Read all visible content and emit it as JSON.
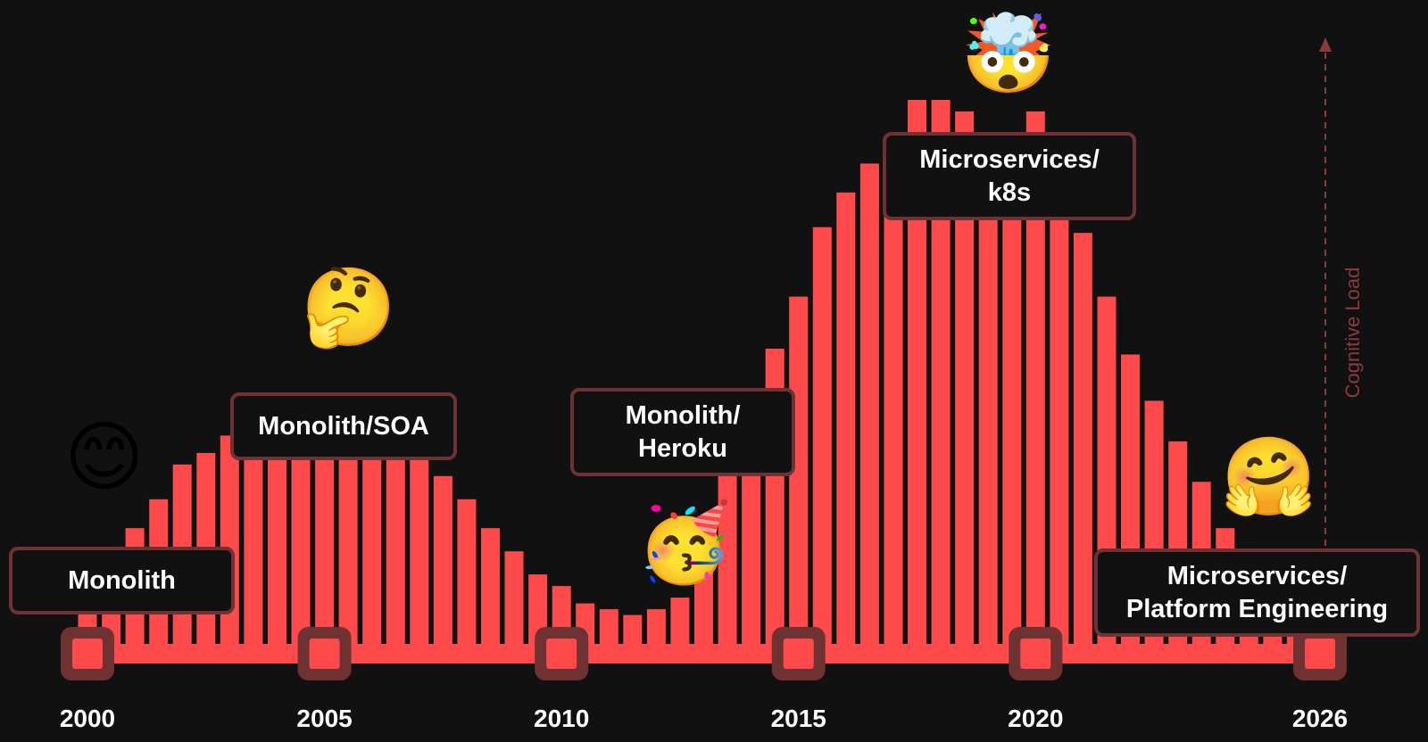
{
  "chart_data": {
    "type": "bar",
    "y_axis_label": "Cognitive Load",
    "x_tick_labels": [
      "2000",
      "2005",
      "2010",
      "2015",
      "2020",
      "2026"
    ],
    "x_start": 2000,
    "x_end": 2026,
    "bar_step_years": 0.5,
    "ylim": [
      0,
      100
    ],
    "values": [
      10,
      13,
      22,
      27,
      33,
      35,
      38,
      40,
      41,
      42,
      43,
      44,
      42,
      39,
      35,
      31,
      27,
      22,
      18,
      14,
      12,
      9,
      8,
      7,
      8,
      10,
      18,
      37,
      42,
      53,
      62,
      74,
      80,
      85,
      89,
      96,
      96,
      94,
      90,
      90,
      94,
      76,
      73,
      62,
      52,
      44,
      37,
      30,
      22,
      15,
      9,
      5,
      3
    ],
    "bar_color": "#ff4a4c",
    "axis_color": "#ff4a4c",
    "marker_color": "#6e3233",
    "annotations": [
      {
        "text": "Monolith",
        "emoji": "😊",
        "year": 2000
      },
      {
        "text": "Monolith/SOA",
        "emoji": "🤔",
        "year": 2005
      },
      {
        "text": "Monolith/\nHeroku",
        "emoji": "🥳",
        "year": 2012.5
      },
      {
        "text": "Microservices/\nk8s",
        "emoji": "🤯",
        "year": 2018
      },
      {
        "text": "Microservices/\nPlatform Engineering",
        "emoji": "🤗",
        "year": 2024.5
      }
    ]
  }
}
